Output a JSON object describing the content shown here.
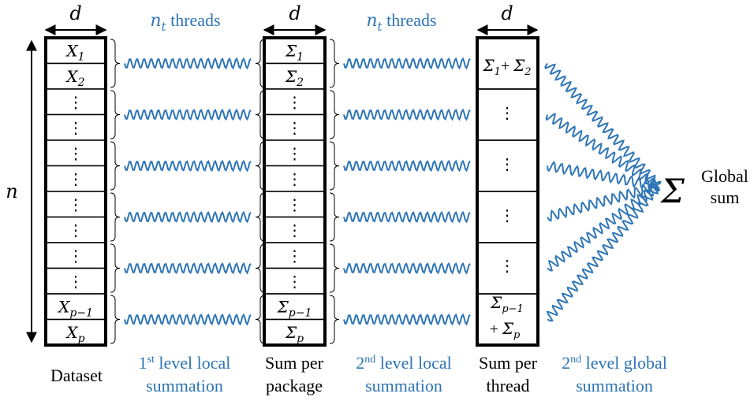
{
  "colors": {
    "ink": "#000000",
    "accent": "#2e75b6"
  },
  "dimension_labels": {
    "width": "d",
    "height": "n"
  },
  "thread_labels": {
    "first": {
      "var": "n",
      "sub": "t",
      "word": " threads"
    },
    "second": {
      "var": "n",
      "sub": "t",
      "word": " threads"
    }
  },
  "dataset": {
    "rows": [
      {
        "main": "X",
        "sub": "1"
      },
      {
        "main": "X",
        "sub": "2"
      },
      {
        "main": "⋮",
        "sub": ""
      },
      {
        "main": "⋮",
        "sub": ""
      },
      {
        "main": "⋮",
        "sub": ""
      },
      {
        "main": "⋮",
        "sub": ""
      },
      {
        "main": "⋮",
        "sub": ""
      },
      {
        "main": "⋮",
        "sub": ""
      },
      {
        "main": "⋮",
        "sub": ""
      },
      {
        "main": "⋮",
        "sub": ""
      },
      {
        "main": "X",
        "sub": "p−1"
      },
      {
        "main": "X",
        "sub": "p"
      }
    ],
    "caption": [
      "Dataset"
    ]
  },
  "package_sums": {
    "rows": [
      {
        "main": "Σ",
        "sub": "1"
      },
      {
        "main": "Σ",
        "sub": "2"
      },
      {
        "main": "⋮",
        "sub": ""
      },
      {
        "main": "⋮",
        "sub": ""
      },
      {
        "main": "⋮",
        "sub": ""
      },
      {
        "main": "⋮",
        "sub": ""
      },
      {
        "main": "⋮",
        "sub": ""
      },
      {
        "main": "⋮",
        "sub": ""
      },
      {
        "main": "⋮",
        "sub": ""
      },
      {
        "main": "⋮",
        "sub": ""
      },
      {
        "main": "Σ",
        "sub": "p−1"
      },
      {
        "main": "Σ",
        "sub": "p"
      }
    ],
    "caption": [
      "Sum per",
      "package"
    ]
  },
  "thread_sums": {
    "first": {
      "a": "Σ",
      "a_sub": "1",
      "plus": "+ ",
      "b": "Σ",
      "b_sub": "2"
    },
    "middle": [
      "⋮",
      "⋮",
      "⋮",
      "⋮"
    ],
    "last": {
      "a": "Σ",
      "a_sub": "p−1",
      "plus": "+ ",
      "b": "Σ",
      "b_sub": "p"
    },
    "caption": [
      "Sum per",
      "thread"
    ]
  },
  "stage_captions": {
    "first_local": {
      "ordinal": "1",
      "suffix": "st",
      "line1": " level local",
      "line2": "summation"
    },
    "second_local": {
      "ordinal": "2",
      "suffix": "nd",
      "line1": " level local",
      "line2": "summation"
    },
    "second_global": {
      "ordinal": "2",
      "suffix": "nd",
      "line1": " level global",
      "line2": "summation"
    }
  },
  "global": {
    "symbol": "Σ",
    "label": [
      "Global",
      "sum"
    ]
  }
}
